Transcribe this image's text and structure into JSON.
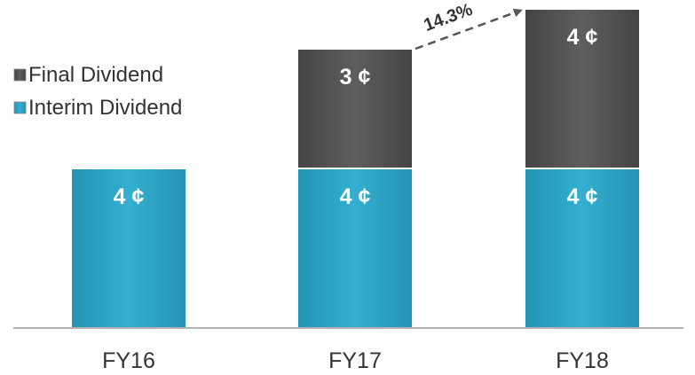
{
  "chart_data": {
    "type": "bar",
    "stacked": true,
    "categories": [
      "FY16",
      "FY17",
      "FY18"
    ],
    "series": [
      {
        "name": "Interim Dividend",
        "values": [
          4,
          4,
          4
        ],
        "labels": [
          "4 ¢",
          "4 ¢",
          "4 ¢"
        ],
        "color": "#2aa3c2"
      },
      {
        "name": "Final Dividend",
        "values": [
          0,
          3,
          4
        ],
        "labels": [
          "",
          "3 ¢",
          "4 ¢"
        ],
        "color": "#555555"
      }
    ],
    "ylim": [
      0,
      8
    ],
    "grid": false,
    "legend": "top-left",
    "annotation": {
      "text": "14.3%",
      "from": "FY17",
      "to": "FY18",
      "style": "dashed-arrow"
    }
  }
}
